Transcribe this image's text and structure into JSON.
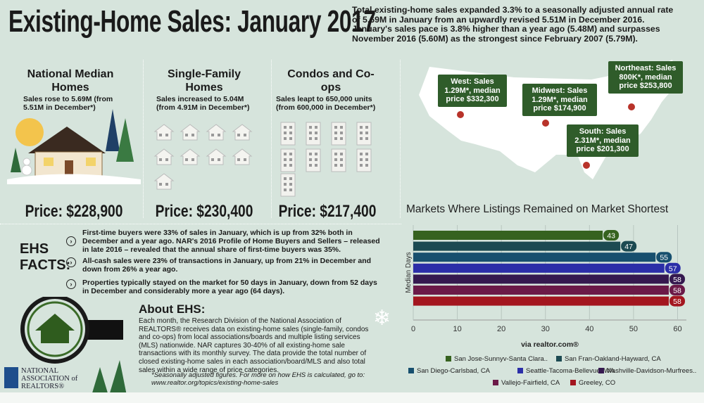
{
  "header": {
    "title": "Existing-Home Sales: January 2017",
    "summary": "Total existing-home sales expanded 3.3% to a seasonally adjusted annual rate of 5.69M in January from an upwardly revised 5.51M in December 2016. January's sales pace is 3.8% higher than a year ago (5.48M) and surpasses November 2016 (5.60M) as the strongest since February 2007 (5.79M)."
  },
  "columns": [
    {
      "heading": "National Median Homes",
      "text": "Sales rose to 5.69M (from 5.51M in December*)",
      "price": "Price: $228,900"
    },
    {
      "heading": "Single-Family Homes",
      "text": "Sales increased to 5.04M (from 4.91M in December*)",
      "price": "Price: $230,400"
    },
    {
      "heading": "Condos and Co-ops",
      "text": "Sales leapt to 650,000 units (from 600,000 in December*)",
      "price": "Price: $217,400"
    }
  ],
  "facts": {
    "label": "EHS FACTS:",
    "items": [
      "First-time buyers were 33% of sales in January, which is up from 32% both in December and a year ago. NAR's 2016 Profile of Home Buyers and Sellers – released in late 2016 – revealed that the annual share of first-time buyers was 35%.",
      "All-cash sales were 23% of transactions in January, up from 21% in December and down from 26% a year ago.",
      "Properties typically stayed on the market for 50 days in January, down from 52 days in December and considerably more a year ago (64 days)."
    ]
  },
  "about": {
    "heading": "About EHS:",
    "text": "Each month, the Research Division of the National Association of REALTORS® receives data on existing-home sales (single-family, condos and co-ops) from local associations/boards and multiple listing services (MLS) nationwide. NAR captures 30-40% of all existing-home sale transactions with its monthly survey. The data provide the total number of closed existing-home sales in each association/board/MLS and also total sales within a wide range of price categories.",
    "note": "*Seasonally adjusted figures. For more on how EHS is calculated, go to: www.realtor.org/topics/existing-home-sales"
  },
  "map": {
    "regions": [
      "West: Sales 1.29M*, median price $332,300",
      "Midwest: Sales 1.29M*, median price $174,900",
      "Northeast: Sales 800K*, median price $253,800",
      "South: Sales 2.31M*, median price $201,300"
    ]
  },
  "logo": {
    "name": "NATIONAL ASSOCIATION of REALTORS®"
  },
  "chart_data": {
    "type": "bar",
    "orientation": "horizontal",
    "title": "Markets Where Listings Remained on Market Shortest",
    "x_label": "via realtor.com®",
    "y_label": "Median Days",
    "series": [
      {
        "name": "San Jose-Sunnyv-Santa Clara..",
        "color": "#36621f",
        "values": [
          43
        ]
      },
      {
        "name": "San Fran-Oakland-Hayward, CA",
        "color": "#1c4a52",
        "values": [
          47
        ]
      },
      {
        "name": "San Diego-Carlsbad, CA",
        "color": "#174f6e",
        "values": [
          55
        ]
      },
      {
        "name": "Seattle-Tacoma-Bellevue, WA",
        "color": "#2b2ea8",
        "values": [
          57
        ]
      },
      {
        "name": "Nashville-Davidson-Murfrees..",
        "color": "#35194f",
        "values": [
          58
        ]
      },
      {
        "name": "Vallejo-Fairfield, CA",
        "color": "#6b1a48",
        "values": [
          58
        ]
      },
      {
        "name": "Greeley, CO",
        "color": "#a3161f",
        "values": [
          58
        ]
      }
    ],
    "xlim": [
      0,
      62
    ],
    "xticks": [
      0,
      10,
      20,
      30,
      40,
      50,
      60
    ],
    "grid": true,
    "legend": "bottom"
  }
}
